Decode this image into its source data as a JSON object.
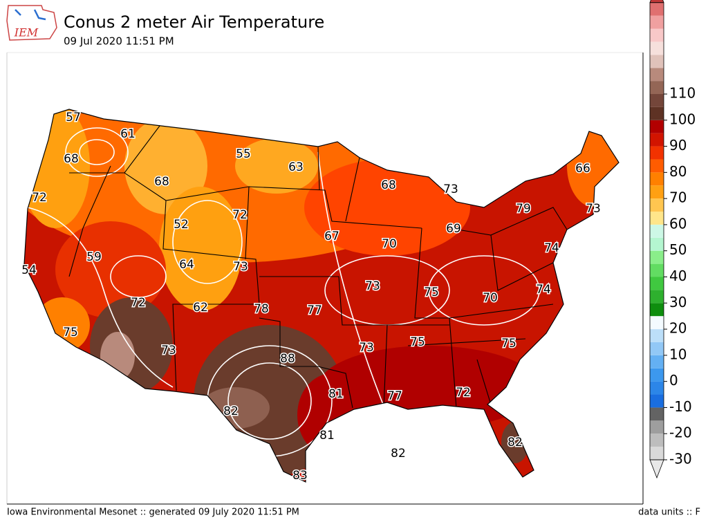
{
  "header": {
    "title": "Conus 2 meter Air Temperature",
    "subtitle": "09 Jul 2020 11:51 PM",
    "logo": "IEM"
  },
  "footer": {
    "left": "Iowa Environmental Mesonet :: generated 09 July 2020 11:51 PM",
    "right": "data units :: F"
  },
  "colorbar": {
    "ticks": [
      -30,
      -20,
      -10,
      0,
      10,
      20,
      30,
      40,
      50,
      60,
      70,
      80,
      90,
      100,
      110
    ],
    "under_color": "#e8e8e8",
    "over_color": "#c03838",
    "colors": [
      "#d9d9d9",
      "#bdbdbd",
      "#9e9e9e",
      "#636363",
      "#1a6ee0",
      "#2c86e8",
      "#3c98ee",
      "#64b0f3",
      "#92c8f6",
      "#bcdff9",
      "#f4fbff",
      "#0e8e0e",
      "#2eb02e",
      "#40c840",
      "#62dc62",
      "#8aee8a",
      "#b4f6d0",
      "#cdf8e6",
      "#ffe68a",
      "#ffc650",
      "#ffa012",
      "#ff8000",
      "#ff5c00",
      "#f23200",
      "#d21400",
      "#b20000",
      "#5e3224",
      "#74463a",
      "#946656",
      "#b88a7c",
      "#e0c2ba",
      "#f6e0dc",
      "#f8c8c8",
      "#f0a0a0",
      "#e07070"
    ]
  },
  "map_labels": [
    57,
    61,
    68,
    55,
    63,
    66,
    68,
    68,
    73,
    72,
    79,
    73,
    52,
    72,
    67,
    70,
    69,
    74,
    54,
    59,
    64,
    73,
    73,
    75,
    74,
    70,
    72,
    62,
    78,
    77,
    75,
    75,
    73,
    75,
    73,
    88,
    81,
    77,
    72,
    82,
    81,
    82,
    82,
    83
  ]
}
